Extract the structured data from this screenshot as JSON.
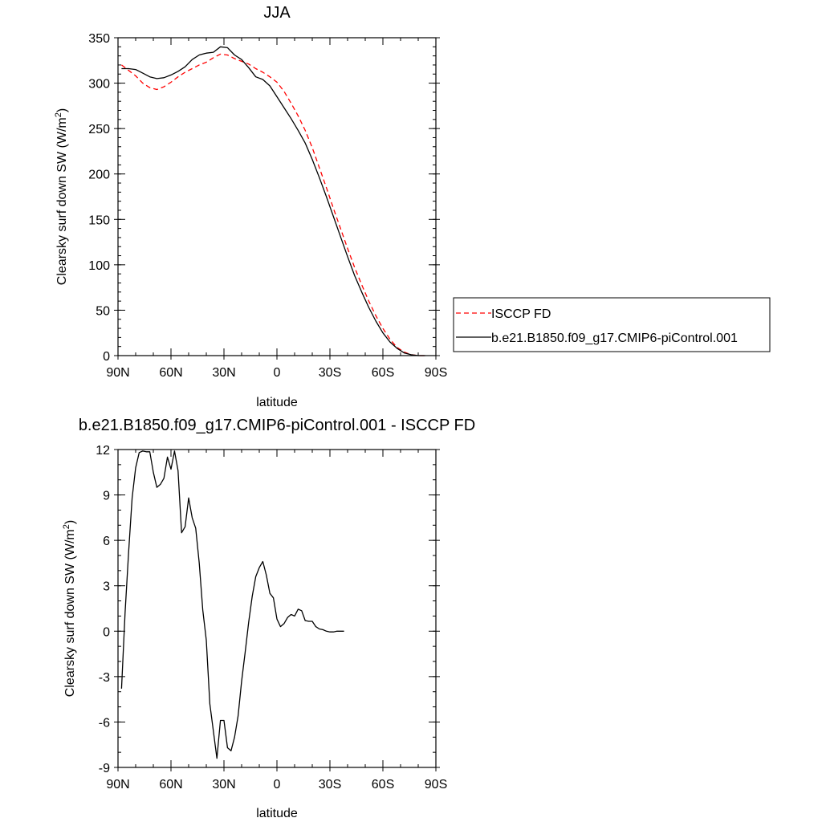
{
  "chart_data": [
    {
      "type": "line",
      "title": "JJA",
      "xlabel": "latitude",
      "ylabel": "Clearsky surf down SW (W/m",
      "ylabel_sup": "2",
      "ylabel_close": ")",
      "xlim": [
        90,
        -90
      ],
      "ylim": [
        0,
        350
      ],
      "xticks": [
        90,
        60,
        30,
        0,
        -30,
        -60,
        -90
      ],
      "xtick_labels": [
        "90N",
        "60N",
        "30N",
        "0",
        "30S",
        "60S",
        "90S"
      ],
      "yticks": [
        0,
        50,
        100,
        150,
        200,
        250,
        300,
        350
      ],
      "ytick_labels": [
        "0",
        "50",
        "100",
        "150",
        "200",
        "250",
        "300",
        "350"
      ],
      "legend_position": "right",
      "series": [
        {
          "name": "ISCCP FD",
          "color": "#ff0000",
          "dash": "dashed",
          "points": [
            [
              88,
              320
            ],
            [
              84,
              314
            ],
            [
              80,
              308
            ],
            [
              76,
              300
            ],
            [
              72,
              295
            ],
            [
              68,
              293
            ],
            [
              64,
              296
            ],
            [
              60,
              301
            ],
            [
              56,
              307
            ],
            [
              52,
              312
            ],
            [
              48,
              316
            ],
            [
              44,
              320
            ],
            [
              40,
              323
            ],
            [
              36,
              328
            ],
            [
              32,
              332
            ],
            [
              28,
              331
            ],
            [
              24,
              327
            ],
            [
              20,
              324
            ],
            [
              16,
              321
            ],
            [
              12,
              316
            ],
            [
              8,
              312
            ],
            [
              4,
              307
            ],
            [
              0,
              301
            ],
            [
              -4,
              291
            ],
            [
              -8,
              278
            ],
            [
              -12,
              264
            ],
            [
              -16,
              248
            ],
            [
              -20,
              229
            ],
            [
              -24,
              207
            ],
            [
              -28,
              185
            ],
            [
              -32,
              162
            ],
            [
              -36,
              140
            ],
            [
              -40,
              118
            ],
            [
              -44,
              97
            ],
            [
              -48,
              78
            ],
            [
              -52,
              60
            ],
            [
              -56,
              44
            ],
            [
              -60,
              30
            ],
            [
              -64,
              18
            ],
            [
              -68,
              9
            ],
            [
              -72,
              4
            ],
            [
              -76,
              1
            ],
            [
              -80,
              0
            ],
            [
              -84,
              0
            ]
          ]
        },
        {
          "name": "b.e21.B1850.f09_g17.CMIP6-piControl.001",
          "color": "#000000",
          "dash": "solid",
          "points": [
            [
              88,
              316
            ],
            [
              84,
              316
            ],
            [
              80,
              315
            ],
            [
              76,
              311
            ],
            [
              72,
              307
            ],
            [
              68,
              305
            ],
            [
              64,
              306
            ],
            [
              60,
              309
            ],
            [
              56,
              313
            ],
            [
              52,
              318
            ],
            [
              48,
              326
            ],
            [
              44,
              331
            ],
            [
              40,
              333
            ],
            [
              36,
              334
            ],
            [
              32,
              340
            ],
            [
              28,
              339
            ],
            [
              24,
              331
            ],
            [
              20,
              326
            ],
            [
              16,
              317
            ],
            [
              12,
              307
            ],
            [
              8,
              304
            ],
            [
              4,
              297
            ],
            [
              0,
              285
            ],
            [
              -4,
              273
            ],
            [
              -8,
              261
            ],
            [
              -12,
              248
            ],
            [
              -16,
              234
            ],
            [
              -20,
              216
            ],
            [
              -24,
              196
            ],
            [
              -28,
              175
            ],
            [
              -32,
              153
            ],
            [
              -36,
              131
            ],
            [
              -40,
              109
            ],
            [
              -44,
              88
            ],
            [
              -48,
              70
            ],
            [
              -52,
              53
            ],
            [
              -56,
              38
            ],
            [
              -60,
              25
            ],
            [
              -64,
              15
            ],
            [
              -68,
              8
            ],
            [
              -72,
              3
            ],
            [
              -76,
              1
            ],
            [
              -80,
              0
            ],
            [
              -84,
              0
            ]
          ]
        }
      ]
    },
    {
      "type": "line",
      "title": "b.e21.B1850.f09_g17.CMIP6-piControl.001 - ISCCP FD",
      "xlabel": "latitude",
      "ylabel": "Clearsky surf down SW (W/m",
      "ylabel_sup": "2",
      "ylabel_close": ")",
      "xlim": [
        90,
        -90
      ],
      "ylim": [
        -9,
        12
      ],
      "xticks": [
        90,
        60,
        30,
        0,
        -30,
        -60,
        -90
      ],
      "xtick_labels": [
        "90N",
        "60N",
        "30N",
        "0",
        "30S",
        "60S",
        "90S"
      ],
      "yticks": [
        -9,
        -6,
        -3,
        0,
        3,
        6,
        9,
        12
      ],
      "ytick_labels": [
        "-9",
        "-6",
        "-3",
        "0",
        "3",
        "6",
        "9",
        "12"
      ],
      "series": [
        {
          "color": "#000000",
          "dash": "solid",
          "points": [
            [
              88,
              -3.8
            ],
            [
              86,
              1.2
            ],
            [
              84,
              5.2
            ],
            [
              82,
              8.8
            ],
            [
              80,
              10.8
            ],
            [
              78,
              11.8
            ],
            [
              76,
              11.9
            ],
            [
              74,
              11.85
            ],
            [
              72,
              11.85
            ],
            [
              70,
              10.5
            ],
            [
              68,
              9.5
            ],
            [
              66,
              9.7
            ],
            [
              64,
              10.1
            ],
            [
              62,
              11.5
            ],
            [
              60,
              10.7
            ],
            [
              58,
              11.9
            ],
            [
              56,
              10.6
            ],
            [
              54,
              6.5
            ],
            [
              52,
              6.9
            ],
            [
              50,
              8.8
            ],
            [
              48,
              7.5
            ],
            [
              46,
              6.8
            ],
            [
              44,
              4.5
            ],
            [
              42,
              1.4
            ],
            [
              40,
              -0.6
            ],
            [
              38,
              -4.8
            ],
            [
              36,
              -6.6
            ],
            [
              34,
              -8.4
            ],
            [
              32,
              -5.9
            ],
            [
              30,
              -5.9
            ],
            [
              28,
              -7.7
            ],
            [
              26,
              -7.9
            ],
            [
              24,
              -7.0
            ],
            [
              22,
              -5.6
            ],
            [
              20,
              -3.3
            ],
            [
              18,
              -1.4
            ],
            [
              16,
              0.6
            ],
            [
              14,
              2.3
            ],
            [
              12,
              3.6
            ],
            [
              10,
              4.2
            ],
            [
              8,
              4.6
            ],
            [
              6,
              3.7
            ],
            [
              4,
              2.5
            ],
            [
              2,
              2.2
            ],
            [
              0,
              0.8
            ],
            [
              -2,
              0.3
            ],
            [
              -4,
              0.5
            ],
            [
              -6,
              0.9
            ],
            [
              -8,
              1.1
            ],
            [
              -10,
              1.0
            ],
            [
              -12,
              1.45
            ],
            [
              -14,
              1.35
            ],
            [
              -16,
              0.7
            ],
            [
              -18,
              0.65
            ],
            [
              -20,
              0.65
            ],
            [
              -22,
              0.3
            ],
            [
              -24,
              0.15
            ],
            [
              -26,
              0.1
            ],
            [
              -28,
              0.0
            ],
            [
              -30,
              -0.05
            ],
            [
              -32,
              -0.05
            ],
            [
              -34,
              0.0
            ],
            [
              -36,
              0.0
            ],
            [
              -38,
              0.0
            ]
          ]
        }
      ]
    }
  ]
}
